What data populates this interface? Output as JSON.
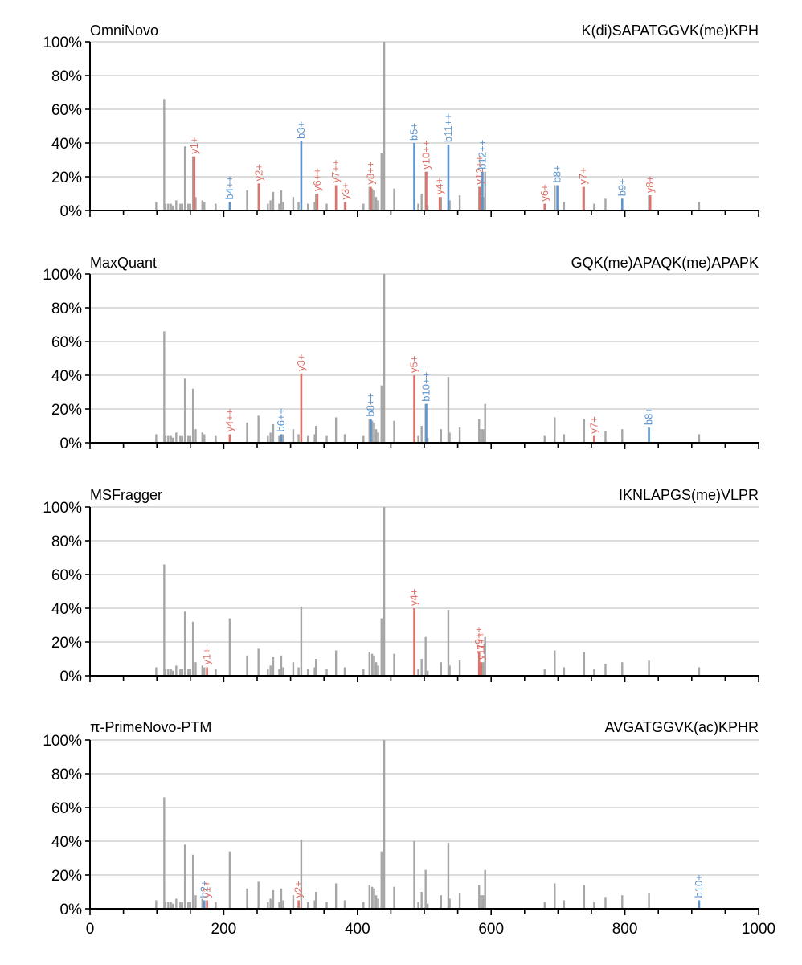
{
  "colors": {
    "unmatched": "#a6a6a6",
    "y_ion": "#e07068",
    "b_ion": "#5b94cf",
    "grid": "#d0d0d0",
    "axis": "#000000"
  },
  "chart_data": {
    "type": "bar",
    "xlim": [
      0,
      1000
    ],
    "ylim": [
      0,
      100
    ],
    "x_ticks": [
      0,
      200,
      400,
      600,
      800,
      1000
    ],
    "x_tick_labels": [
      "0",
      "200",
      "400",
      "600",
      "800",
      "1000"
    ],
    "y_ticks": [
      0,
      20,
      40,
      60,
      80,
      100
    ],
    "y_tick_labels": [
      "0%",
      "20%",
      "40%",
      "60%",
      "80%",
      "100%"
    ],
    "grid": true,
    "spectrum": [
      [
        99,
        5
      ],
      [
        111,
        66
      ],
      [
        113,
        4
      ],
      [
        117,
        4
      ],
      [
        121,
        4
      ],
      [
        124,
        3
      ],
      [
        129,
        6
      ],
      [
        135,
        4
      ],
      [
        138,
        4
      ],
      [
        142,
        38
      ],
      [
        147,
        4
      ],
      [
        150,
        4
      ],
      [
        154,
        32
      ],
      [
        158,
        8
      ],
      [
        168,
        6
      ],
      [
        171,
        5
      ],
      [
        188,
        4
      ],
      [
        209,
        34
      ],
      [
        235,
        12
      ],
      [
        252,
        16
      ],
      [
        266,
        4
      ],
      [
        270,
        6
      ],
      [
        274,
        11
      ],
      [
        283,
        4
      ],
      [
        286,
        12
      ],
      [
        289,
        5
      ],
      [
        304,
        8
      ],
      [
        312,
        5
      ],
      [
        316,
        41
      ],
      [
        326,
        4
      ],
      [
        336,
        5
      ],
      [
        338,
        10
      ],
      [
        354,
        4
      ],
      [
        368,
        15
      ],
      [
        381,
        5
      ],
      [
        409,
        4
      ],
      [
        418,
        14
      ],
      [
        422,
        13
      ],
      [
        425,
        12
      ],
      [
        428,
        8
      ],
      [
        431,
        6
      ],
      [
        436,
        34
      ],
      [
        440,
        100
      ],
      [
        455,
        13
      ],
      [
        485,
        40
      ],
      [
        491,
        4
      ],
      [
        496,
        10
      ],
      [
        502,
        23
      ],
      [
        505,
        3
      ],
      [
        525,
        8
      ],
      [
        536,
        39
      ],
      [
        538,
        6
      ],
      [
        553,
        9
      ],
      [
        582,
        14
      ],
      [
        585,
        8
      ],
      [
        588,
        8
      ],
      [
        591,
        23
      ],
      [
        680,
        4
      ],
      [
        695,
        15
      ],
      [
        709,
        5
      ],
      [
        739,
        14
      ],
      [
        754,
        4
      ],
      [
        771,
        7
      ],
      [
        796,
        8
      ],
      [
        836,
        9
      ],
      [
        911,
        5
      ]
    ],
    "panels": [
      {
        "method": "OmniNovo",
        "peptide": "K(di)SAPATGGVK(me)KPH",
        "ions": [
          {
            "label": "y1+",
            "type": "y",
            "mz": 156,
            "i": 32
          },
          {
            "label": "b4++",
            "type": "b",
            "mz": 209,
            "i": 5
          },
          {
            "label": "y2+",
            "type": "y",
            "mz": 253,
            "i": 16
          },
          {
            "label": "b3+",
            "type": "b",
            "mz": 316,
            "i": 41
          },
          {
            "label": "y6++",
            "type": "y",
            "mz": 340,
            "i": 10
          },
          {
            "label": "y7++",
            "type": "y",
            "mz": 368,
            "i": 15
          },
          {
            "label": "y3+",
            "type": "y",
            "mz": 382,
            "i": 5
          },
          {
            "label": "y8++",
            "type": "y",
            "mz": 420,
            "i": 14
          },
          {
            "label": "b5+",
            "type": "b",
            "mz": 485,
            "i": 40
          },
          {
            "label": "y10++",
            "type": "y",
            "mz": 503,
            "i": 23
          },
          {
            "label": "y4+",
            "type": "y",
            "mz": 523,
            "i": 8
          },
          {
            "label": "b11++",
            "type": "b",
            "mz": 536,
            "i": 39
          },
          {
            "label": "y12++",
            "type": "y",
            "mz": 583,
            "i": 14
          },
          {
            "label": "b12++",
            "type": "b",
            "mz": 587,
            "i": 23
          },
          {
            "label": "y6+",
            "type": "y",
            "mz": 680,
            "i": 4
          },
          {
            "label": "b8+",
            "type": "b",
            "mz": 699,
            "i": 15
          },
          {
            "label": "y7+",
            "type": "y",
            "mz": 738,
            "i": 14
          },
          {
            "label": "b9+",
            "type": "b",
            "mz": 796,
            "i": 7
          },
          {
            "label": "y8+",
            "type": "y",
            "mz": 838,
            "i": 9
          }
        ]
      },
      {
        "method": "MaxQuant",
        "peptide": "GQK(me)APAQK(me)APAPK",
        "ions": [
          {
            "label": "y4++",
            "type": "y",
            "mz": 209,
            "i": 5
          },
          {
            "label": "b6++",
            "type": "b",
            "mz": 286,
            "i": 5
          },
          {
            "label": "y3+",
            "type": "y",
            "mz": 316,
            "i": 41
          },
          {
            "label": "b8++",
            "type": "b",
            "mz": 420,
            "i": 14
          },
          {
            "label": "y5+",
            "type": "y",
            "mz": 485,
            "i": 40
          },
          {
            "label": "b10++",
            "type": "b",
            "mz": 503,
            "i": 23
          },
          {
            "label": "y7+",
            "type": "y",
            "mz": 754,
            "i": 4
          },
          {
            "label": "b8+",
            "type": "b",
            "mz": 836,
            "i": 9
          }
        ]
      },
      {
        "method": "MSFragger",
        "peptide": "IKNLAPGS(me)VLPR",
        "ions": [
          {
            "label": "y1+",
            "type": "y",
            "mz": 175,
            "i": 5
          },
          {
            "label": "y4+",
            "type": "y",
            "mz": 485,
            "i": 40
          },
          {
            "label": "y9++",
            "type": "y",
            "mz": 582,
            "i": 14
          },
          {
            "label": "y11++",
            "type": "y",
            "mz": 585,
            "i": 8
          }
        ]
      },
      {
        "method": "π-PrimeNovo-PTM",
        "peptide": "AVGATGGVK(ac)KPHR",
        "ions": [
          {
            "label": "b2+",
            "type": "b",
            "mz": 171,
            "i": 5
          },
          {
            "label": "y1+",
            "type": "y",
            "mz": 175,
            "i": 5
          },
          {
            "label": "y2+",
            "type": "y",
            "mz": 312,
            "i": 5
          },
          {
            "label": "b10+",
            "type": "b",
            "mz": 911,
            "i": 5
          }
        ]
      }
    ]
  }
}
